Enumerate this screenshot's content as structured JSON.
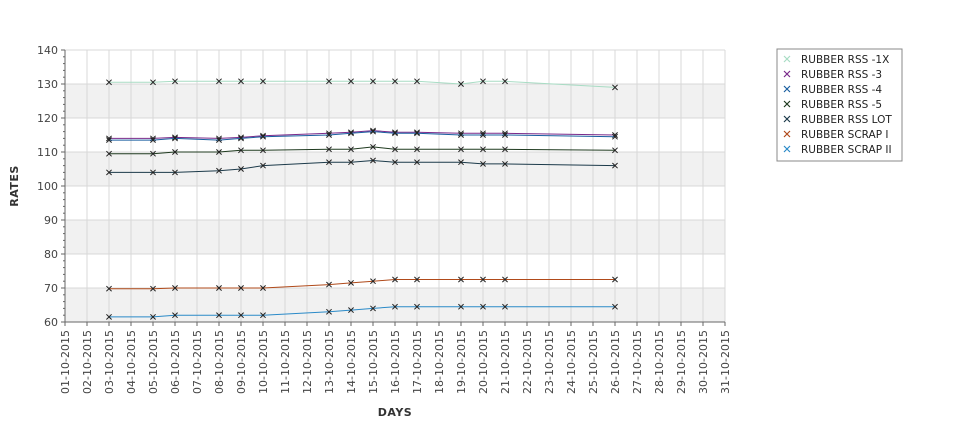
{
  "chart_data": {
    "type": "line",
    "title": "",
    "xlabel": "DAYS",
    "ylabel": "RATES",
    "ylim": [
      60,
      140
    ],
    "yticks": [
      60,
      70,
      80,
      90,
      100,
      110,
      120,
      130,
      140
    ],
    "grid": true,
    "legend_position": "right",
    "categories": [
      "01-10-2015",
      "02-10-2015",
      "03-10-2015",
      "04-10-2015",
      "05-10-2015",
      "06-10-2015",
      "07-10-2015",
      "08-10-2015",
      "09-10-2015",
      "10-10-2015",
      "11-10-2015",
      "12-10-2015",
      "13-10-2015",
      "14-10-2015",
      "15-10-2015",
      "16-10-2015",
      "17-10-2015",
      "18-10-2015",
      "19-10-2015",
      "20-10-2015",
      "21-10-2015",
      "22-10-2015",
      "23-10-2015",
      "24-10-2015",
      "25-10-2015",
      "26-10-2015",
      "27-10-2015",
      "28-10-2015",
      "29-10-2015",
      "30-10-2015",
      "31-10-2015"
    ],
    "series": [
      {
        "name": "RUBBER RSS -1X",
        "color": "#a8dcc4",
        "values": [
          null,
          null,
          130.5,
          null,
          130.5,
          130.8,
          null,
          130.8,
          130.8,
          130.8,
          null,
          null,
          130.8,
          130.8,
          130.8,
          130.8,
          130.8,
          null,
          130.0,
          130.8,
          130.8,
          null,
          null,
          null,
          null,
          129.0,
          null,
          null,
          null,
          null,
          null
        ]
      },
      {
        "name": "RUBBER RSS -3",
        "color": "#7a2a8a",
        "values": [
          null,
          null,
          114.0,
          null,
          114.0,
          114.3,
          null,
          114.0,
          114.3,
          114.8,
          null,
          null,
          115.5,
          115.8,
          116.3,
          115.8,
          115.8,
          null,
          115.5,
          115.5,
          115.5,
          null,
          null,
          null,
          null,
          115.0,
          null,
          null,
          null,
          null,
          null
        ]
      },
      {
        "name": "RUBBER RSS -4",
        "color": "#1a5fa0",
        "values": [
          null,
          null,
          113.5,
          null,
          113.5,
          114.0,
          null,
          113.5,
          114.0,
          114.5,
          null,
          null,
          115.0,
          115.5,
          116.0,
          115.5,
          115.5,
          null,
          115.0,
          115.0,
          115.0,
          null,
          null,
          null,
          null,
          114.5,
          null,
          null,
          null,
          null,
          null
        ]
      },
      {
        "name": "RUBBER RSS -5",
        "color": "#1f3a1f",
        "values": [
          null,
          null,
          109.5,
          null,
          109.5,
          110.0,
          null,
          110.0,
          110.5,
          110.5,
          null,
          null,
          110.8,
          110.8,
          111.5,
          110.8,
          110.8,
          null,
          110.8,
          110.8,
          110.8,
          null,
          null,
          null,
          null,
          110.5,
          null,
          null,
          null,
          null,
          null
        ]
      },
      {
        "name": "RUBBER RSS LOT",
        "color": "#1c3a4a",
        "values": [
          null,
          null,
          104.0,
          null,
          104.0,
          104.0,
          null,
          104.5,
          105.0,
          106.0,
          null,
          null,
          107.0,
          107.0,
          107.5,
          107.0,
          107.0,
          null,
          107.0,
          106.5,
          106.5,
          null,
          null,
          null,
          null,
          106.0,
          null,
          null,
          null,
          null,
          null
        ]
      },
      {
        "name": "RUBBER SCRAP I",
        "color": "#b04a1a",
        "values": [
          null,
          null,
          69.8,
          null,
          69.8,
          70.0,
          null,
          70.0,
          70.0,
          70.0,
          null,
          null,
          71.0,
          71.5,
          72.0,
          72.5,
          72.5,
          null,
          72.5,
          72.5,
          72.5,
          null,
          null,
          null,
          null,
          72.5,
          null,
          null,
          null,
          null,
          null
        ]
      },
      {
        "name": "RUBBER SCRAP II",
        "color": "#2a8ac8",
        "values": [
          null,
          null,
          61.5,
          null,
          61.5,
          62.0,
          null,
          62.0,
          62.0,
          62.0,
          null,
          null,
          63.0,
          63.5,
          64.0,
          64.5,
          64.5,
          null,
          64.5,
          64.5,
          64.5,
          null,
          null,
          null,
          null,
          64.5,
          null,
          null,
          null,
          null,
          null
        ]
      }
    ]
  }
}
